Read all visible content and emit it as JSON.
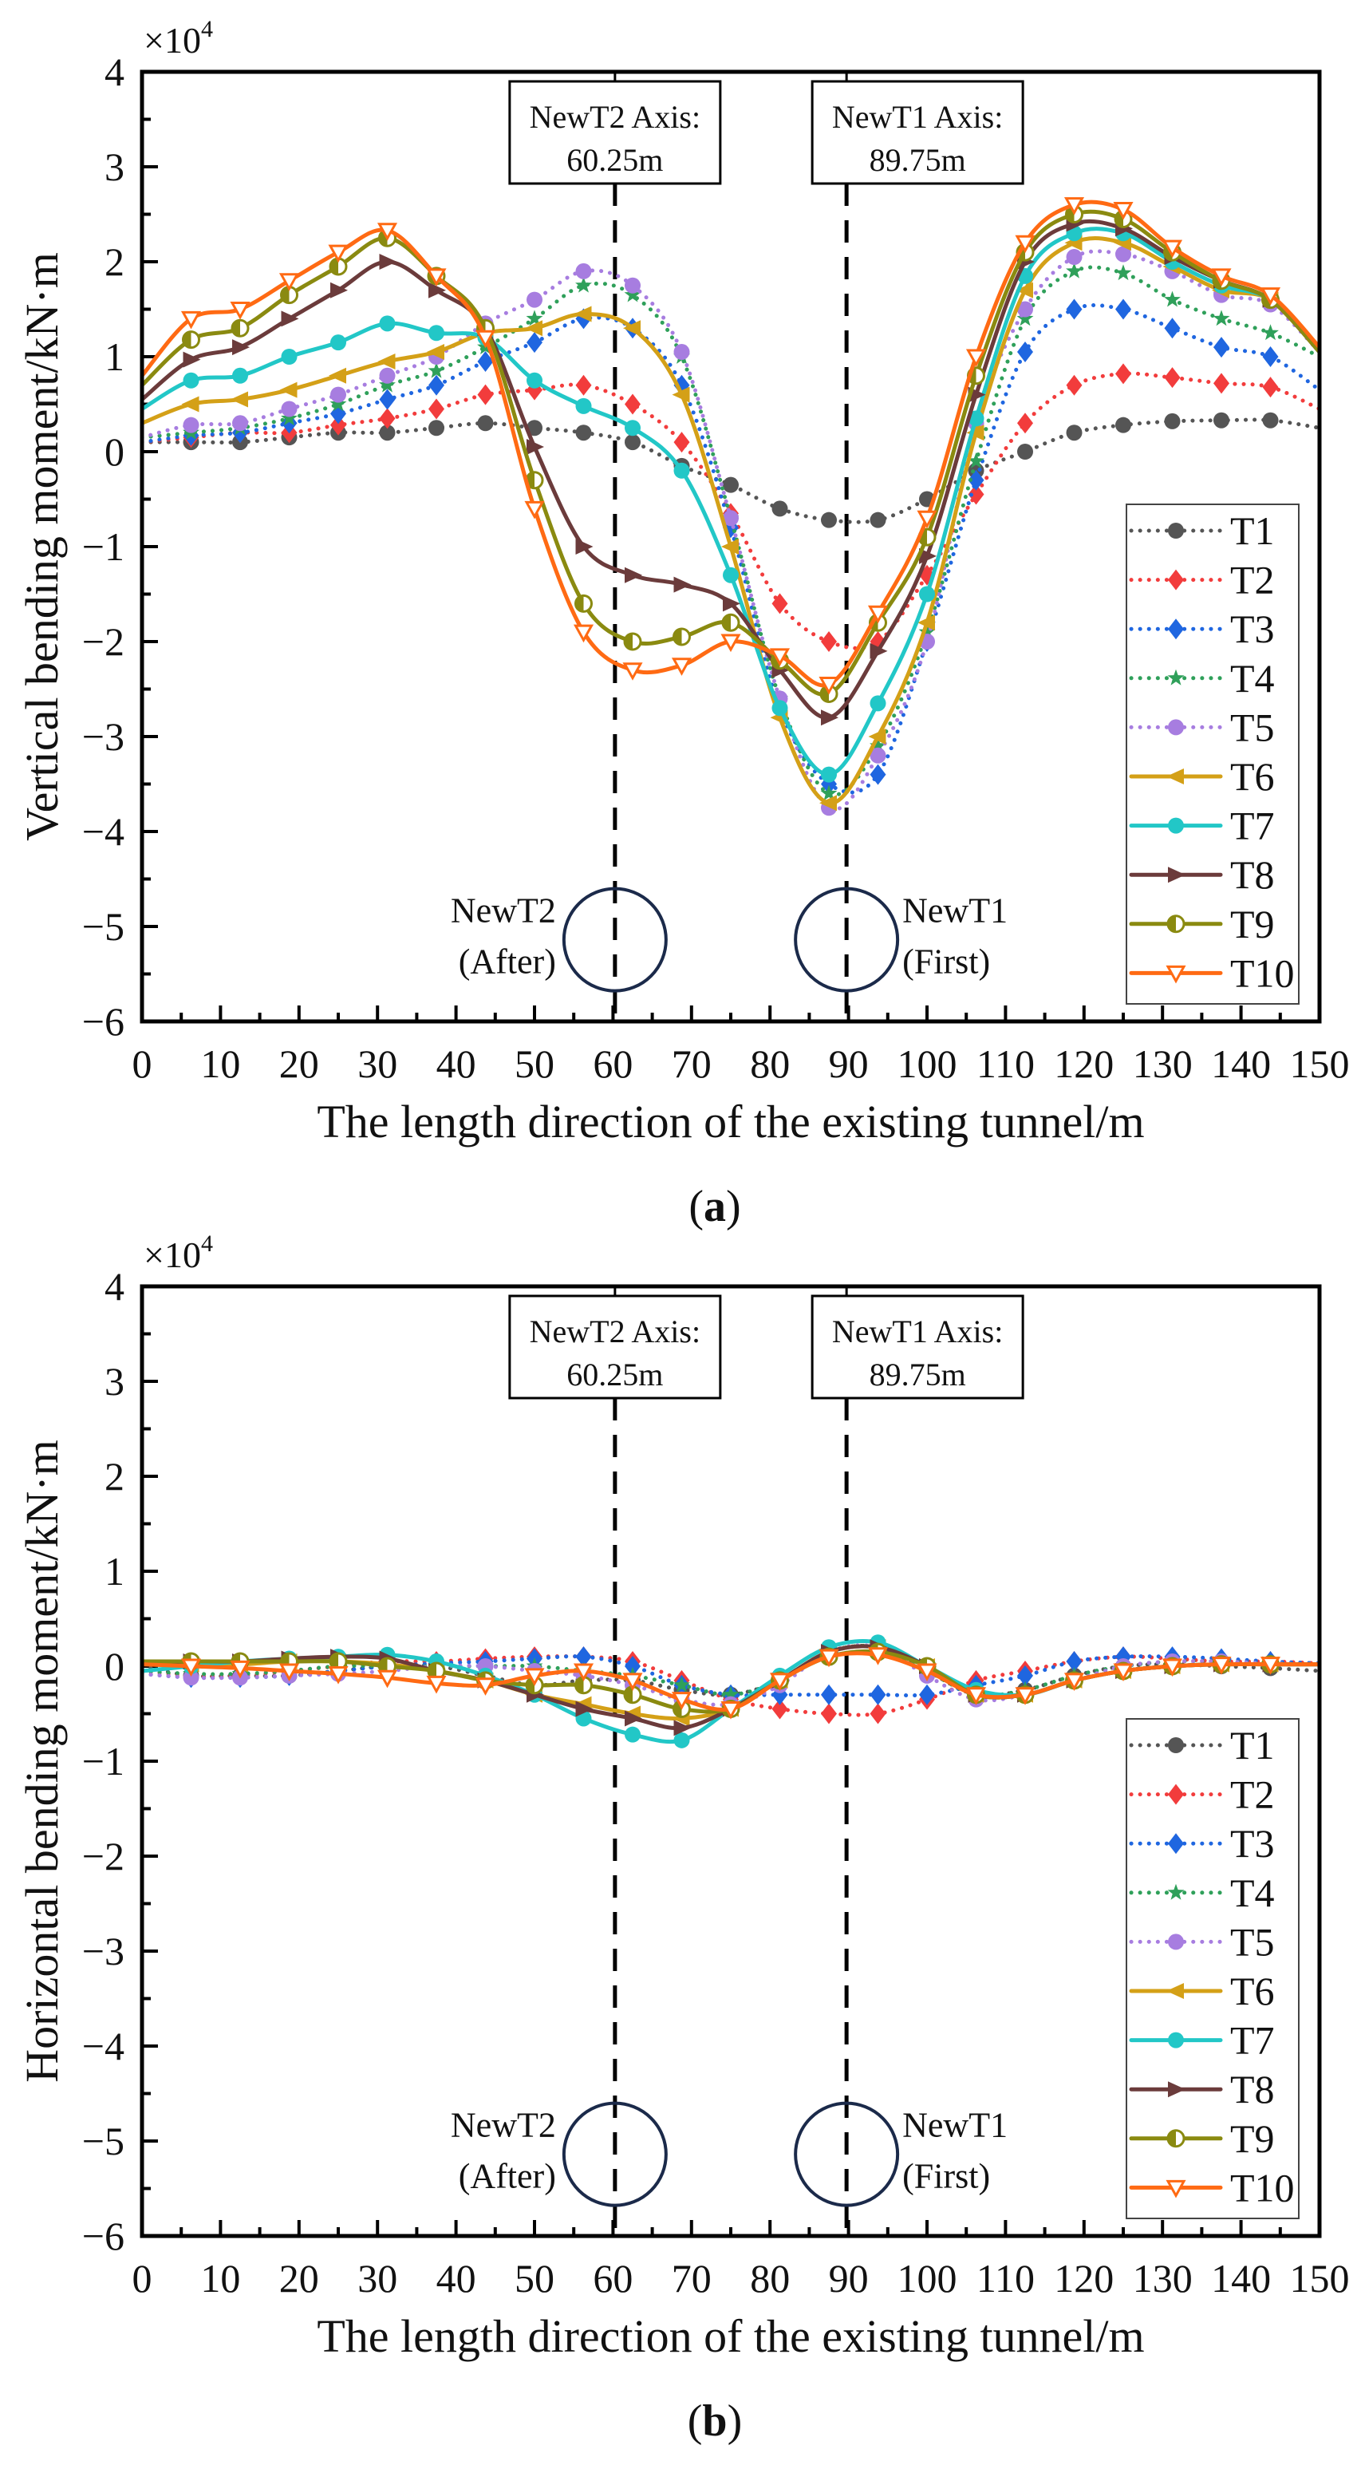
{
  "figure": {
    "panel_labels": [
      "a",
      "b"
    ]
  },
  "chart_data": [
    {
      "type": "line",
      "panel": "a",
      "ylabel": "Vertical bending moment/kN·m",
      "xlabel": "The length direction of the existing tunnel/m",
      "y_multiplier": "×10",
      "y_multiplier_exp": "4",
      "xlim": [
        0,
        150
      ],
      "ylim": [
        -6,
        4
      ],
      "xticks": [
        0,
        10,
        20,
        30,
        40,
        50,
        60,
        70,
        80,
        90,
        100,
        110,
        120,
        130,
        140,
        150
      ],
      "yticks": [
        4,
        3,
        2,
        1,
        0,
        -1,
        -2,
        -3,
        -4,
        -5,
        -6
      ],
      "grid": false,
      "legend": "bottom-right",
      "annotations": {
        "axis_boxes": [
          {
            "line1": "NewT2 Axis:",
            "line2": "60.25m",
            "x": 60.25
          },
          {
            "line1": "NewT1 Axis:",
            "line2": "89.75m",
            "x": 89.75
          }
        ],
        "tunnels": [
          {
            "line1": "NewT2",
            "line2": "(After)",
            "x": 60.25,
            "y": -5.14,
            "side": "left"
          },
          {
            "line1": "NewT1",
            "line2": "(First)",
            "x": 89.75,
            "y": -5.14,
            "side": "right"
          }
        ]
      },
      "x": [
        0,
        6.25,
        12.5,
        18.75,
        25,
        31.25,
        37.5,
        43.75,
        50,
        56.25,
        62.5,
        68.75,
        75,
        81.25,
        87.5,
        93.75,
        100,
        106.25,
        112.5,
        118.75,
        125,
        131.25,
        137.5,
        143.75,
        150
      ],
      "series": [
        {
          "name": "T1",
          "color": "#555555",
          "style": "dotted",
          "marker": "circle",
          "values": [
            0.1,
            0.1,
            0.1,
            0.15,
            0.2,
            0.2,
            0.25,
            0.3,
            0.25,
            0.2,
            0.1,
            -0.15,
            -0.35,
            -0.6,
            -0.72,
            -0.72,
            -0.5,
            -0.2,
            0,
            0.2,
            0.28,
            0.32,
            0.33,
            0.33,
            0.25
          ]
        },
        {
          "name": "T2",
          "color": "#f23c3c",
          "style": "dotted",
          "marker": "diamond",
          "values": [
            0.1,
            0.15,
            0.2,
            0.2,
            0.28,
            0.35,
            0.45,
            0.6,
            0.65,
            0.7,
            0.5,
            0.1,
            -0.65,
            -1.6,
            -2.0,
            -2.0,
            -1.3,
            -0.45,
            0.3,
            0.7,
            0.82,
            0.78,
            0.72,
            0.68,
            0.45
          ]
        },
        {
          "name": "T3",
          "color": "#1f66e0",
          "style": "dotted",
          "marker": "diamond",
          "values": [
            0.1,
            0.17,
            0.2,
            0.3,
            0.4,
            0.55,
            0.7,
            0.95,
            1.15,
            1.4,
            1.3,
            0.7,
            -0.8,
            -2.7,
            -3.5,
            -3.4,
            -2.0,
            -0.3,
            1.05,
            1.5,
            1.5,
            1.3,
            1.1,
            1.0,
            0.65
          ]
        },
        {
          "name": "T4",
          "color": "#2fa05a",
          "style": "dotted",
          "marker": "star",
          "values": [
            0.15,
            0.2,
            0.25,
            0.35,
            0.5,
            0.7,
            0.85,
            1.1,
            1.4,
            1.75,
            1.65,
            1.0,
            -0.7,
            -2.6,
            -3.6,
            -3.1,
            -1.9,
            -0.1,
            1.4,
            1.9,
            1.88,
            1.6,
            1.4,
            1.25,
            1.0
          ]
        },
        {
          "name": "T5",
          "color": "#a77de0",
          "style": "dotted",
          "marker": "circle",
          "values": [
            0.15,
            0.28,
            0.3,
            0.45,
            0.6,
            0.8,
            1.0,
            1.35,
            1.6,
            1.9,
            1.75,
            1.05,
            -0.7,
            -2.6,
            -3.75,
            -3.2,
            -2.0,
            0.3,
            1.5,
            2.05,
            2.08,
            1.9,
            1.65,
            1.55,
            1.05
          ]
        },
        {
          "name": "T6",
          "color": "#d4a017",
          "style": "solid",
          "marker": "tri-left",
          "values": [
            0.3,
            0.5,
            0.55,
            0.65,
            0.8,
            0.95,
            1.05,
            1.25,
            1.3,
            1.45,
            1.3,
            0.6,
            -1.0,
            -2.8,
            -3.7,
            -3.0,
            -1.8,
            0.2,
            1.7,
            2.2,
            2.2,
            1.95,
            1.7,
            1.6,
            1.05
          ]
        },
        {
          "name": "T7",
          "color": "#22c7c7",
          "style": "solid",
          "marker": "circle",
          "values": [
            0.45,
            0.75,
            0.8,
            1.0,
            1.15,
            1.35,
            1.25,
            1.2,
            0.75,
            0.48,
            0.25,
            -0.2,
            -1.3,
            -2.7,
            -3.4,
            -2.65,
            -1.5,
            0.35,
            1.85,
            2.3,
            2.3,
            2.0,
            1.75,
            1.6,
            1.05
          ]
        },
        {
          "name": "T8",
          "color": "#6b3b3b",
          "style": "solid",
          "marker": "tri-right",
          "values": [
            0.55,
            0.97,
            1.1,
            1.4,
            1.7,
            2.0,
            1.7,
            1.3,
            0.05,
            -1.0,
            -1.3,
            -1.4,
            -1.6,
            -2.3,
            -2.8,
            -2.1,
            -1.1,
            0.6,
            2.0,
            2.4,
            2.35,
            2.05,
            1.8,
            1.6,
            1.05
          ]
        },
        {
          "name": "T9",
          "color": "#8a8a10",
          "style": "solid",
          "marker": "half-circle",
          "values": [
            0.7,
            1.18,
            1.3,
            1.65,
            1.95,
            2.25,
            1.85,
            1.3,
            -0.3,
            -1.6,
            -2.0,
            -1.95,
            -1.8,
            -2.2,
            -2.55,
            -1.8,
            -0.9,
            0.8,
            2.1,
            2.5,
            2.45,
            2.1,
            1.8,
            1.6,
            1.05
          ]
        },
        {
          "name": "T10",
          "color": "#ff6a13",
          "style": "solid",
          "marker": "open-tri-down",
          "values": [
            0.8,
            1.4,
            1.5,
            1.8,
            2.1,
            2.33,
            1.85,
            1.2,
            -0.6,
            -1.9,
            -2.3,
            -2.25,
            -2.0,
            -2.15,
            -2.45,
            -1.7,
            -0.7,
            1.0,
            2.2,
            2.6,
            2.55,
            2.15,
            1.85,
            1.65,
            1.1
          ]
        }
      ]
    },
    {
      "type": "line",
      "panel": "b",
      "ylabel": "Horizontal bending moment/kN·m",
      "xlabel": "The length direction of the existing tunnel/m",
      "y_multiplier": "×10",
      "y_multiplier_exp": "4",
      "xlim": [
        0,
        150
      ],
      "ylim": [
        -6,
        4
      ],
      "xticks": [
        0,
        10,
        20,
        30,
        40,
        50,
        60,
        70,
        80,
        90,
        100,
        110,
        120,
        130,
        140,
        150
      ],
      "yticks": [
        4,
        3,
        2,
        1,
        0,
        -1,
        -2,
        -3,
        -4,
        -5,
        -6
      ],
      "grid": false,
      "legend": "bottom-right",
      "annotations": {
        "axis_boxes": [
          {
            "line1": "NewT2 Axis:",
            "line2": "60.25m",
            "x": 60.25
          },
          {
            "line1": "NewT1 Axis:",
            "line2": "89.75m",
            "x": 89.75
          }
        ],
        "tunnels": [
          {
            "line1": "NewT2",
            "line2": "(After)",
            "x": 60.25,
            "y": -5.14,
            "side": "left"
          },
          {
            "line1": "NewT1",
            "line2": "(First)",
            "x": 89.75,
            "y": -5.14,
            "side": "right"
          }
        ]
      },
      "x": [
        0,
        6.25,
        12.5,
        18.75,
        25,
        31.25,
        37.5,
        43.75,
        50,
        56.25,
        62.5,
        68.75,
        75,
        81.25,
        87.5,
        93.75,
        100,
        106.25,
        112.5,
        118.75,
        125,
        131.25,
        137.5,
        143.75,
        150
      ],
      "series": [
        {
          "name": "T1",
          "color": "#555555",
          "style": "dotted",
          "marker": "circle",
          "values": [
            0,
            -0.1,
            -0.1,
            -0.1,
            -0.05,
            0,
            0,
            -0.1,
            -0.2,
            -0.15,
            -0.15,
            -0.25,
            -0.3,
            -0.15,
            0.15,
            0.2,
            -0.05,
            -0.3,
            -0.25,
            -0.1,
            0,
            0.02,
            0,
            -0.02,
            -0.05
          ]
        },
        {
          "name": "T2",
          "color": "#f23c3c",
          "style": "dotted",
          "marker": "diamond",
          "values": [
            -0.05,
            -0.1,
            -0.1,
            -0.05,
            0,
            0.05,
            0.05,
            0.08,
            0.1,
            0.1,
            0.05,
            -0.15,
            -0.35,
            -0.45,
            -0.5,
            -0.5,
            -0.35,
            -0.15,
            -0.05,
            0.05,
            0.1,
            0.08,
            0.05,
            0.05,
            0.03
          ]
        },
        {
          "name": "T3",
          "color": "#1f66e0",
          "style": "dotted",
          "marker": "diamond",
          "values": [
            -0.08,
            -0.12,
            -0.12,
            -0.1,
            -0.05,
            0,
            0.03,
            0.05,
            0.08,
            0.1,
            0,
            -0.2,
            -0.3,
            -0.3,
            -0.3,
            -0.3,
            -0.3,
            -0.2,
            -0.1,
            0.05,
            0.1,
            0.1,
            0.08,
            0.05,
            0.03
          ]
        },
        {
          "name": "T4",
          "color": "#2fa05a",
          "style": "dotted",
          "marker": "star",
          "values": [
            -0.05,
            -0.08,
            -0.08,
            -0.05,
            0,
            0,
            0,
            0,
            0,
            -0.05,
            -0.1,
            -0.2,
            -0.3,
            -0.15,
            0.15,
            0.2,
            -0.05,
            -0.3,
            -0.25,
            -0.1,
            0,
            0.05,
            0.05,
            0.03,
            0.02
          ]
        },
        {
          "name": "T5",
          "color": "#a77de0",
          "style": "dotted",
          "marker": "circle",
          "values": [
            -0.08,
            -0.12,
            -0.12,
            -0.1,
            -0.08,
            -0.05,
            0,
            0,
            -0.05,
            -0.1,
            -0.2,
            -0.35,
            -0.4,
            -0.2,
            0.15,
            0.2,
            -0.1,
            -0.35,
            -0.3,
            -0.15,
            0,
            0.05,
            0.05,
            0.03,
            0.02
          ]
        },
        {
          "name": "T6",
          "color": "#d4a017",
          "style": "solid",
          "marker": "tri-left",
          "values": [
            0.03,
            0.02,
            0.02,
            0.05,
            0.05,
            0.02,
            -0.05,
            -0.15,
            -0.3,
            -0.4,
            -0.5,
            -0.55,
            -0.45,
            -0.15,
            0.15,
            0.2,
            0,
            -0.3,
            -0.3,
            -0.15,
            -0.05,
            0,
            0.02,
            0.02,
            0.02
          ]
        },
        {
          "name": "T7",
          "color": "#22c7c7",
          "style": "solid",
          "marker": "circle",
          "values": [
            -0.05,
            0,
            0.05,
            0.08,
            0.1,
            0.12,
            0.05,
            -0.1,
            -0.3,
            -0.55,
            -0.72,
            -0.78,
            -0.45,
            -0.1,
            0.2,
            0.25,
            0,
            -0.25,
            -0.3,
            -0.15,
            -0.05,
            0,
            0.02,
            0.02,
            0.02
          ]
        },
        {
          "name": "T8",
          "color": "#6b3b3b",
          "style": "solid",
          "marker": "tri-right",
          "values": [
            0.03,
            0.05,
            0.05,
            0.08,
            0.1,
            0.08,
            -0.05,
            -0.15,
            -0.3,
            -0.45,
            -0.55,
            -0.65,
            -0.45,
            -0.15,
            0.15,
            0.2,
            0,
            -0.3,
            -0.3,
            -0.15,
            -0.05,
            0,
            0.02,
            0.02,
            0.02
          ]
        },
        {
          "name": "T9",
          "color": "#8a8a10",
          "style": "solid",
          "marker": "half-circle",
          "values": [
            0.05,
            0.05,
            0.05,
            0.05,
            0.05,
            0,
            -0.05,
            -0.15,
            -0.2,
            -0.2,
            -0.3,
            -0.45,
            -0.45,
            -0.15,
            0.1,
            0.15,
            0,
            -0.3,
            -0.3,
            -0.15,
            -0.05,
            0,
            0.02,
            0.02,
            0.02
          ]
        },
        {
          "name": "T10",
          "color": "#ff6a13",
          "style": "solid",
          "marker": "open-tri-down",
          "values": [
            0.02,
            0,
            -0.02,
            -0.05,
            -0.08,
            -0.12,
            -0.18,
            -0.2,
            -0.1,
            -0.05,
            -0.15,
            -0.35,
            -0.45,
            -0.15,
            0.1,
            0.12,
            -0.05,
            -0.3,
            -0.3,
            -0.15,
            -0.05,
            0,
            0.02,
            0.02,
            0.02
          ]
        }
      ]
    }
  ]
}
